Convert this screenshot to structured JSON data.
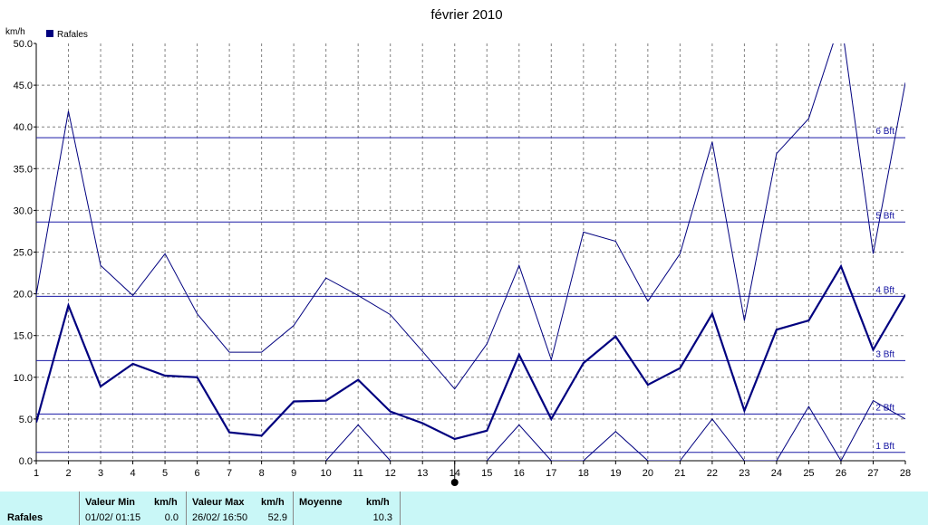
{
  "chart_data": {
    "type": "line",
    "title": "février 2010",
    "ylabel": "km/h",
    "xlabel": "",
    "ylim": [
      0,
      50
    ],
    "yticks": [
      "0.0",
      "5.0",
      "10.0",
      "15.0",
      "20.0",
      "25.0",
      "30.0",
      "35.0",
      "40.0",
      "45.0",
      "50.0"
    ],
    "x": [
      1,
      2,
      3,
      4,
      5,
      6,
      7,
      8,
      9,
      10,
      11,
      12,
      13,
      14,
      15,
      16,
      17,
      18,
      19,
      20,
      21,
      22,
      23,
      24,
      25,
      26,
      27,
      28
    ],
    "xticks": [
      "1",
      "2",
      "3",
      "4",
      "5",
      "6",
      "7",
      "8",
      "9",
      "10",
      "11",
      "12",
      "13",
      "14",
      "15",
      "16",
      "17",
      "18",
      "19",
      "20",
      "21",
      "22",
      "23",
      "24",
      "25",
      "26",
      "27",
      "28"
    ],
    "grid": true,
    "legend": {
      "position": "top-left",
      "entries": [
        "Rafales"
      ]
    },
    "series": [
      {
        "name": "Rafales",
        "style": "thick",
        "values": [
          4.6,
          18.6,
          8.9,
          11.6,
          10.2,
          10.0,
          3.4,
          3.0,
          7.1,
          7.2,
          9.7,
          5.9,
          4.5,
          2.6,
          3.6,
          12.7,
          5.0,
          11.7,
          14.9,
          9.1,
          11.1,
          17.6,
          6.0,
          15.7,
          16.8,
          23.3,
          13.3,
          19.9
        ]
      },
      {
        "style": "thin-max",
        "values": [
          19.9,
          41.9,
          23.4,
          19.8,
          24.8,
          17.6,
          13.0,
          13.0,
          16.2,
          21.9,
          19.8,
          17.5,
          13.1,
          8.6,
          14.0,
          23.4,
          12.1,
          27.4,
          26.3,
          19.1,
          24.8,
          38.2,
          16.8,
          36.8,
          41.0,
          52.9,
          24.8,
          45.3
        ]
      },
      {
        "style": "thin-min",
        "values": [
          null,
          null,
          null,
          null,
          null,
          null,
          null,
          null,
          null,
          0.0,
          4.3,
          0.0,
          null,
          null,
          0.0,
          4.3,
          0.0,
          0.0,
          3.5,
          0.0,
          0.0,
          5.0,
          0.0,
          0.0,
          6.5,
          0.0,
          7.2,
          5.0
        ]
      }
    ],
    "reference_lines": [
      {
        "label": "1 Bft",
        "value": 1.0
      },
      {
        "label": "2 Bft",
        "value": 5.6
      },
      {
        "label": "3 Bft",
        "value": 12.0
      },
      {
        "label": "4 Bft",
        "value": 19.7
      },
      {
        "label": "5 Bft",
        "value": 28.6
      },
      {
        "label": "6 Bft",
        "value": 38.7
      }
    ],
    "colors": {
      "series": "#00007f",
      "reference": "#1a1aa6",
      "grid": "#808080"
    }
  },
  "stats": {
    "row_label": "Rafales",
    "min": {
      "header": "Valeur Min",
      "unit": "km/h",
      "date": "01/02/  01:15",
      "value": "0.0"
    },
    "max": {
      "header": "Valeur Max",
      "unit": "km/h",
      "date": "26/02/  16:50",
      "value": "52.9"
    },
    "avg": {
      "header": "Moyenne",
      "unit": "km/h",
      "value": "10.3"
    }
  }
}
